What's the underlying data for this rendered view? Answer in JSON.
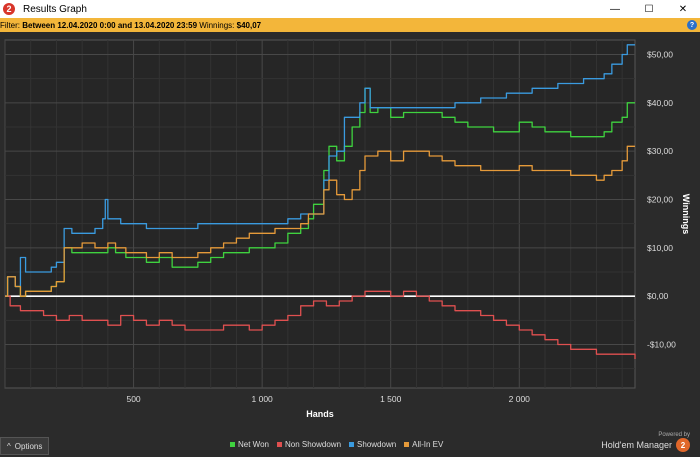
{
  "window": {
    "title": "Results Graph",
    "app_icon": "2",
    "buttons": {
      "minimize": "—",
      "maximize": "☐",
      "close": "✕"
    }
  },
  "filter": {
    "prefix": "Filter: ",
    "range": "Between 12.04.2020 0:00 and 13.04.2020 23:59",
    "winnings_label": "Winnings: ",
    "winnings_value": "$40,07",
    "help_icon": "?"
  },
  "bottom": {
    "options_label": "Options",
    "options_icon": "^",
    "powered_by": "Powered by",
    "brand_name": "Hold'em Manager",
    "brand_logo": "2"
  },
  "chart_data": {
    "type": "line",
    "xlabel": "Hands",
    "ylabel": "Winnings",
    "xlim": [
      0,
      2450
    ],
    "ylim": [
      -19,
      53
    ],
    "x_ticks": [
      500,
      1000,
      1500,
      2000
    ],
    "x_tick_labels": [
      "500",
      "1 000",
      "1 500",
      "2 000"
    ],
    "y_ticks": [
      50,
      40,
      30,
      20,
      10,
      0,
      -10
    ],
    "y_tick_labels": [
      "$50,00",
      "$40,00",
      "$30,00",
      "$20,00",
      "$10,00",
      "$0,00",
      "-$10,00"
    ],
    "grid": true,
    "zero_line": 0,
    "legend_position": "bottom",
    "series": [
      {
        "name": "Net Won",
        "color": "#3fd23f",
        "points": [
          [
            0,
            0
          ],
          [
            10,
            4
          ],
          [
            40,
            2
          ],
          [
            60,
            0
          ],
          [
            80,
            1
          ],
          [
            100,
            1
          ],
          [
            140,
            1
          ],
          [
            180,
            2
          ],
          [
            200,
            3
          ],
          [
            230,
            10
          ],
          [
            260,
            9
          ],
          [
            300,
            9
          ],
          [
            350,
            9
          ],
          [
            400,
            10
          ],
          [
            430,
            9
          ],
          [
            470,
            8
          ],
          [
            500,
            8
          ],
          [
            550,
            7
          ],
          [
            600,
            8
          ],
          [
            650,
            6
          ],
          [
            700,
            6
          ],
          [
            750,
            7
          ],
          [
            800,
            8
          ],
          [
            850,
            9
          ],
          [
            900,
            9
          ],
          [
            950,
            10
          ],
          [
            1000,
            10
          ],
          [
            1050,
            11
          ],
          [
            1100,
            13
          ],
          [
            1150,
            14
          ],
          [
            1180,
            16
          ],
          [
            1200,
            19
          ],
          [
            1240,
            26
          ],
          [
            1260,
            31
          ],
          [
            1290,
            28
          ],
          [
            1320,
            31
          ],
          [
            1350,
            35
          ],
          [
            1380,
            38
          ],
          [
            1400,
            43
          ],
          [
            1420,
            38
          ],
          [
            1450,
            39
          ],
          [
            1480,
            39
          ],
          [
            1500,
            37
          ],
          [
            1550,
            38
          ],
          [
            1600,
            38
          ],
          [
            1700,
            37
          ],
          [
            1750,
            36
          ],
          [
            1800,
            35
          ],
          [
            1850,
            35
          ],
          [
            1900,
            34
          ],
          [
            1950,
            34
          ],
          [
            2000,
            36
          ],
          [
            2050,
            35
          ],
          [
            2100,
            34
          ],
          [
            2150,
            34
          ],
          [
            2200,
            33
          ],
          [
            2250,
            33
          ],
          [
            2300,
            33
          ],
          [
            2330,
            34
          ],
          [
            2360,
            36
          ],
          [
            2400,
            37
          ],
          [
            2420,
            40
          ],
          [
            2450,
            40
          ]
        ]
      },
      {
        "name": "Non Showdown",
        "color": "#e05050",
        "points": [
          [
            0,
            0
          ],
          [
            20,
            -2
          ],
          [
            60,
            -3
          ],
          [
            100,
            -3
          ],
          [
            150,
            -4
          ],
          [
            200,
            -5
          ],
          [
            250,
            -4
          ],
          [
            300,
            -5
          ],
          [
            350,
            -5
          ],
          [
            400,
            -6
          ],
          [
            450,
            -4
          ],
          [
            500,
            -5
          ],
          [
            550,
            -6
          ],
          [
            600,
            -5
          ],
          [
            650,
            -6
          ],
          [
            700,
            -7
          ],
          [
            750,
            -7
          ],
          [
            800,
            -7
          ],
          [
            850,
            -6
          ],
          [
            900,
            -6
          ],
          [
            950,
            -7
          ],
          [
            1000,
            -6
          ],
          [
            1050,
            -5
          ],
          [
            1100,
            -4
          ],
          [
            1150,
            -2
          ],
          [
            1200,
            -1
          ],
          [
            1250,
            -2
          ],
          [
            1300,
            -1
          ],
          [
            1350,
            0
          ],
          [
            1400,
            1
          ],
          [
            1450,
            1
          ],
          [
            1500,
            0
          ],
          [
            1550,
            1
          ],
          [
            1600,
            0
          ],
          [
            1650,
            -1
          ],
          [
            1700,
            -2
          ],
          [
            1750,
            -3
          ],
          [
            1800,
            -3
          ],
          [
            1850,
            -4
          ],
          [
            1900,
            -5
          ],
          [
            1950,
            -6
          ],
          [
            2000,
            -7
          ],
          [
            2050,
            -8
          ],
          [
            2100,
            -9
          ],
          [
            2150,
            -10
          ],
          [
            2200,
            -11
          ],
          [
            2250,
            -11
          ],
          [
            2300,
            -12
          ],
          [
            2350,
            -12
          ],
          [
            2400,
            -12
          ],
          [
            2450,
            -13
          ]
        ]
      },
      {
        "name": "Showdown",
        "color": "#3a9be0",
        "points": [
          [
            0,
            0
          ],
          [
            10,
            4
          ],
          [
            40,
            2
          ],
          [
            60,
            8
          ],
          [
            80,
            5
          ],
          [
            100,
            5
          ],
          [
            140,
            5
          ],
          [
            180,
            6
          ],
          [
            200,
            7
          ],
          [
            230,
            14
          ],
          [
            260,
            13
          ],
          [
            300,
            13
          ],
          [
            350,
            14
          ],
          [
            380,
            16
          ],
          [
            390,
            20
          ],
          [
            400,
            16
          ],
          [
            450,
            15
          ],
          [
            500,
            15
          ],
          [
            550,
            14
          ],
          [
            600,
            14
          ],
          [
            650,
            14
          ],
          [
            700,
            14
          ],
          [
            750,
            15
          ],
          [
            800,
            15
          ],
          [
            850,
            15
          ],
          [
            900,
            15
          ],
          [
            950,
            15
          ],
          [
            1000,
            15
          ],
          [
            1050,
            15
          ],
          [
            1100,
            16
          ],
          [
            1150,
            17
          ],
          [
            1200,
            17
          ],
          [
            1240,
            24
          ],
          [
            1260,
            29
          ],
          [
            1290,
            30
          ],
          [
            1320,
            37
          ],
          [
            1350,
            37
          ],
          [
            1380,
            40
          ],
          [
            1400,
            43
          ],
          [
            1420,
            39
          ],
          [
            1450,
            39
          ],
          [
            1500,
            39
          ],
          [
            1550,
            39
          ],
          [
            1600,
            39
          ],
          [
            1700,
            39
          ],
          [
            1750,
            40
          ],
          [
            1800,
            40
          ],
          [
            1850,
            41
          ],
          [
            1900,
            41
          ],
          [
            1950,
            42
          ],
          [
            2000,
            42
          ],
          [
            2050,
            43
          ],
          [
            2100,
            43
          ],
          [
            2150,
            44
          ],
          [
            2200,
            44
          ],
          [
            2250,
            45
          ],
          [
            2300,
            45
          ],
          [
            2330,
            46
          ],
          [
            2360,
            48
          ],
          [
            2400,
            50
          ],
          [
            2420,
            52
          ],
          [
            2450,
            52
          ]
        ]
      },
      {
        "name": "All-In EV",
        "color": "#e59a3a",
        "points": [
          [
            0,
            0
          ],
          [
            10,
            4
          ],
          [
            40,
            2
          ],
          [
            60,
            0
          ],
          [
            80,
            1
          ],
          [
            100,
            1
          ],
          [
            140,
            1
          ],
          [
            180,
            2
          ],
          [
            200,
            3
          ],
          [
            230,
            10
          ],
          [
            260,
            10
          ],
          [
            300,
            11
          ],
          [
            350,
            10
          ],
          [
            400,
            11
          ],
          [
            430,
            10
          ],
          [
            470,
            9
          ],
          [
            500,
            9
          ],
          [
            550,
            8
          ],
          [
            600,
            9
          ],
          [
            650,
            8
          ],
          [
            700,
            8
          ],
          [
            750,
            9
          ],
          [
            800,
            10
          ],
          [
            850,
            11
          ],
          [
            900,
            12
          ],
          [
            950,
            13
          ],
          [
            1000,
            13
          ],
          [
            1050,
            14
          ],
          [
            1100,
            14
          ],
          [
            1150,
            15
          ],
          [
            1180,
            17
          ],
          [
            1200,
            17
          ],
          [
            1240,
            22
          ],
          [
            1260,
            24
          ],
          [
            1290,
            21
          ],
          [
            1320,
            20
          ],
          [
            1350,
            22
          ],
          [
            1380,
            26
          ],
          [
            1400,
            29
          ],
          [
            1420,
            29
          ],
          [
            1450,
            30
          ],
          [
            1480,
            30
          ],
          [
            1500,
            28
          ],
          [
            1550,
            30
          ],
          [
            1600,
            30
          ],
          [
            1650,
            29
          ],
          [
            1700,
            28
          ],
          [
            1750,
            27
          ],
          [
            1800,
            27
          ],
          [
            1850,
            26
          ],
          [
            1900,
            26
          ],
          [
            1950,
            26
          ],
          [
            2000,
            27
          ],
          [
            2050,
            26
          ],
          [
            2100,
            26
          ],
          [
            2150,
            26
          ],
          [
            2200,
            25
          ],
          [
            2250,
            25
          ],
          [
            2300,
            24
          ],
          [
            2330,
            25
          ],
          [
            2360,
            26
          ],
          [
            2400,
            28
          ],
          [
            2420,
            31
          ],
          [
            2450,
            31
          ]
        ]
      }
    ]
  }
}
